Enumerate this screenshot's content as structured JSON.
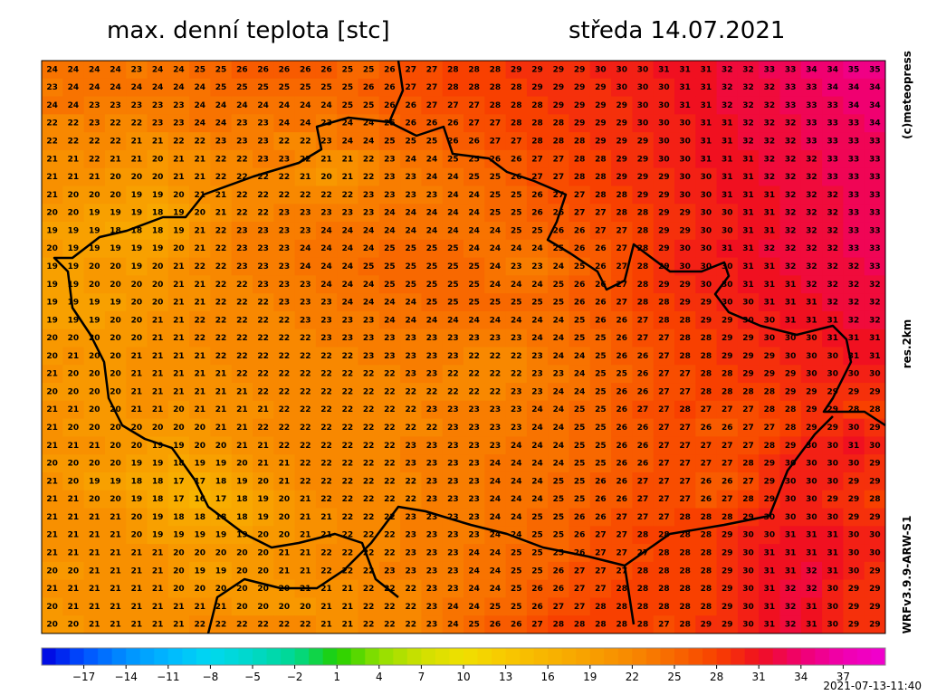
{
  "header": {
    "title": "max. denní teplota [stc]",
    "date": "středa 14.07.2021"
  },
  "side": {
    "copyright": "(c)meteopress",
    "resolution": "res.2km",
    "model": "WRFv3.9.9-ARW-S1"
  },
  "footer": {
    "timestamp": "2021-07-13-11:40"
  },
  "colorbar": {
    "range": [
      -20,
      40
    ],
    "stops": [
      [
        -20,
        "#0000e0"
      ],
      [
        -17,
        "#0050ff"
      ],
      [
        -14,
        "#0090ff"
      ],
      [
        -11,
        "#00b8ff"
      ],
      [
        -8,
        "#00d8f0"
      ],
      [
        -5,
        "#00d8c8"
      ],
      [
        -2,
        "#00d890"
      ],
      [
        1,
        "#20d000"
      ],
      [
        4,
        "#90e000"
      ],
      [
        7,
        "#d0e000"
      ],
      [
        10,
        "#f0e000"
      ],
      [
        13,
        "#f8c800"
      ],
      [
        16,
        "#f8b400"
      ],
      [
        19,
        "#f8a000"
      ],
      [
        22,
        "#f88800"
      ],
      [
        25,
        "#f86800"
      ],
      [
        28,
        "#f84000"
      ],
      [
        31,
        "#f01020"
      ],
      [
        34,
        "#f00070"
      ],
      [
        37,
        "#f000b0"
      ],
      [
        40,
        "#f000d0"
      ]
    ],
    "ticks": [
      {
        "value": -17,
        "label": "−17"
      },
      {
        "value": -14,
        "label": "−14"
      },
      {
        "value": -11,
        "label": "−11"
      },
      {
        "value": -8,
        "label": "−8"
      },
      {
        "value": -5,
        "label": "−5"
      },
      {
        "value": -2,
        "label": "−2"
      },
      1,
      4,
      7,
      10,
      13,
      16,
      19,
      22,
      25,
      28,
      31,
      34,
      37
    ]
  },
  "grid": {
    "rows": [
      [
        24,
        24,
        24,
        24,
        23,
        24,
        24,
        25,
        25,
        26,
        26,
        26,
        26,
        26,
        25,
        25,
        26,
        27,
        27,
        28,
        28,
        28,
        29,
        29,
        29,
        29,
        30,
        30,
        30,
        31,
        31,
        31,
        32,
        32,
        33,
        33,
        34,
        34,
        35,
        35
      ],
      [
        23,
        24,
        24,
        24,
        24,
        24,
        24,
        24,
        25,
        25,
        25,
        25,
        25,
        25,
        25,
        26,
        26,
        27,
        27,
        28,
        28,
        28,
        28,
        29,
        29,
        29,
        29,
        30,
        30,
        30,
        31,
        31,
        32,
        32,
        32,
        33,
        33,
        34,
        34,
        34
      ],
      [
        24,
        24,
        23,
        23,
        23,
        23,
        23,
        24,
        24,
        24,
        24,
        24,
        24,
        24,
        25,
        25,
        26,
        26,
        27,
        27,
        27,
        28,
        28,
        28,
        29,
        29,
        29,
        29,
        30,
        30,
        31,
        31,
        32,
        32,
        32,
        33,
        33,
        33,
        34,
        34
      ],
      [
        22,
        22,
        23,
        22,
        22,
        23,
        23,
        24,
        24,
        23,
        23,
        24,
        24,
        23,
        24,
        24,
        25,
        26,
        26,
        26,
        27,
        27,
        28,
        28,
        28,
        29,
        29,
        29,
        30,
        30,
        30,
        31,
        31,
        32,
        32,
        32,
        33,
        33,
        33,
        34
      ],
      [
        22,
        22,
        22,
        22,
        21,
        21,
        22,
        22,
        23,
        23,
        23,
        22,
        22,
        23,
        24,
        24,
        25,
        25,
        25,
        26,
        26,
        27,
        27,
        28,
        28,
        28,
        29,
        29,
        29,
        30,
        30,
        31,
        31,
        32,
        32,
        32,
        33,
        33,
        33,
        33
      ],
      [
        21,
        21,
        22,
        21,
        21,
        20,
        21,
        21,
        22,
        22,
        23,
        23,
        22,
        21,
        21,
        22,
        23,
        24,
        24,
        25,
        25,
        26,
        26,
        27,
        27,
        28,
        28,
        29,
        29,
        30,
        30,
        31,
        31,
        31,
        32,
        32,
        32,
        33,
        33,
        33
      ],
      [
        21,
        21,
        21,
        20,
        20,
        20,
        21,
        21,
        22,
        22,
        22,
        22,
        21,
        20,
        21,
        22,
        23,
        23,
        24,
        24,
        25,
        25,
        26,
        27,
        27,
        28,
        28,
        29,
        29,
        29,
        30,
        30,
        31,
        31,
        32,
        32,
        32,
        33,
        33,
        33
      ],
      [
        21,
        20,
        20,
        20,
        19,
        19,
        20,
        21,
        21,
        22,
        22,
        22,
        22,
        22,
        22,
        23,
        23,
        23,
        23,
        24,
        24,
        25,
        25,
        26,
        27,
        27,
        28,
        28,
        29,
        29,
        30,
        30,
        31,
        31,
        31,
        32,
        32,
        32,
        33,
        33
      ],
      [
        20,
        20,
        19,
        19,
        19,
        18,
        19,
        20,
        21,
        22,
        22,
        23,
        23,
        23,
        23,
        23,
        24,
        24,
        24,
        24,
        24,
        25,
        25,
        26,
        26,
        27,
        27,
        28,
        28,
        29,
        29,
        30,
        30,
        31,
        31,
        32,
        32,
        32,
        33,
        33
      ],
      [
        19,
        19,
        19,
        18,
        18,
        18,
        19,
        21,
        22,
        23,
        23,
        23,
        23,
        24,
        24,
        24,
        24,
        24,
        24,
        24,
        24,
        24,
        25,
        25,
        26,
        26,
        27,
        27,
        28,
        29,
        29,
        30,
        30,
        31,
        31,
        32,
        32,
        32,
        33,
        33
      ],
      [
        20,
        19,
        19,
        19,
        19,
        19,
        20,
        21,
        22,
        23,
        23,
        23,
        24,
        24,
        24,
        24,
        25,
        25,
        25,
        25,
        24,
        24,
        24,
        24,
        25,
        26,
        26,
        27,
        28,
        29,
        30,
        30,
        31,
        31,
        32,
        32,
        32,
        32,
        33,
        33
      ],
      [
        19,
        19,
        20,
        20,
        19,
        20,
        21,
        22,
        22,
        23,
        23,
        23,
        24,
        24,
        24,
        25,
        25,
        25,
        25,
        25,
        25,
        24,
        23,
        23,
        24,
        25,
        26,
        27,
        28,
        29,
        30,
        30,
        30,
        31,
        31,
        32,
        32,
        32,
        32,
        33
      ],
      [
        19,
        19,
        20,
        20,
        20,
        20,
        21,
        21,
        22,
        22,
        23,
        23,
        23,
        24,
        24,
        24,
        25,
        25,
        25,
        25,
        25,
        24,
        24,
        24,
        25,
        26,
        26,
        27,
        28,
        29,
        29,
        30,
        30,
        31,
        31,
        31,
        32,
        32,
        32,
        32
      ],
      [
        19,
        19,
        19,
        19,
        20,
        20,
        21,
        21,
        22,
        22,
        22,
        23,
        23,
        23,
        24,
        24,
        24,
        24,
        25,
        25,
        25,
        25,
        25,
        25,
        25,
        26,
        26,
        27,
        28,
        28,
        29,
        29,
        30,
        30,
        31,
        31,
        31,
        32,
        32,
        32
      ],
      [
        19,
        19,
        19,
        20,
        20,
        21,
        21,
        22,
        22,
        22,
        22,
        22,
        23,
        23,
        23,
        23,
        24,
        24,
        24,
        24,
        24,
        24,
        24,
        24,
        24,
        25,
        26,
        26,
        27,
        28,
        28,
        29,
        29,
        30,
        30,
        31,
        31,
        31,
        32,
        32
      ],
      [
        20,
        20,
        20,
        20,
        20,
        21,
        21,
        22,
        22,
        22,
        22,
        22,
        22,
        23,
        23,
        23,
        23,
        23,
        23,
        23,
        23,
        23,
        23,
        24,
        24,
        25,
        25,
        26,
        27,
        27,
        28,
        28,
        29,
        29,
        30,
        30,
        30,
        31,
        31,
        31
      ],
      [
        20,
        21,
        20,
        20,
        21,
        21,
        21,
        21,
        22,
        22,
        22,
        22,
        22,
        22,
        22,
        23,
        23,
        23,
        23,
        23,
        22,
        22,
        22,
        23,
        24,
        24,
        25,
        26,
        26,
        27,
        28,
        28,
        29,
        29,
        29,
        30,
        30,
        30,
        31,
        31
      ],
      [
        21,
        20,
        20,
        20,
        21,
        21,
        21,
        21,
        21,
        22,
        22,
        22,
        22,
        22,
        22,
        22,
        22,
        23,
        23,
        22,
        22,
        22,
        22,
        23,
        23,
        24,
        25,
        25,
        26,
        27,
        27,
        28,
        28,
        29,
        29,
        29,
        30,
        30,
        30,
        30
      ],
      [
        20,
        20,
        20,
        20,
        21,
        21,
        21,
        21,
        21,
        21,
        22,
        22,
        22,
        22,
        22,
        22,
        22,
        22,
        22,
        22,
        22,
        22,
        23,
        23,
        24,
        24,
        25,
        26,
        26,
        27,
        27,
        28,
        28,
        28,
        28,
        29,
        29,
        29,
        29,
        29
      ],
      [
        21,
        21,
        20,
        20,
        21,
        21,
        20,
        21,
        21,
        21,
        21,
        22,
        22,
        22,
        22,
        22,
        22,
        22,
        23,
        23,
        23,
        23,
        23,
        24,
        24,
        25,
        25,
        26,
        27,
        27,
        28,
        27,
        27,
        27,
        28,
        28,
        29,
        29,
        28,
        28
      ],
      [
        21,
        20,
        20,
        20,
        20,
        20,
        20,
        20,
        21,
        21,
        22,
        22,
        22,
        22,
        22,
        22,
        22,
        22,
        22,
        23,
        23,
        23,
        23,
        24,
        24,
        25,
        25,
        26,
        26,
        27,
        27,
        26,
        26,
        27,
        27,
        28,
        29,
        29,
        30,
        29
      ],
      [
        21,
        21,
        21,
        20,
        20,
        19,
        19,
        20,
        20,
        21,
        21,
        22,
        22,
        22,
        22,
        22,
        22,
        23,
        23,
        23,
        23,
        23,
        24,
        24,
        24,
        25,
        25,
        26,
        26,
        27,
        27,
        27,
        27,
        27,
        28,
        29,
        30,
        30,
        31,
        30
      ],
      [
        20,
        20,
        20,
        20,
        19,
        19,
        18,
        19,
        19,
        20,
        21,
        21,
        22,
        22,
        22,
        22,
        22,
        23,
        23,
        23,
        23,
        24,
        24,
        24,
        24,
        25,
        25,
        26,
        26,
        27,
        27,
        27,
        27,
        28,
        29,
        30,
        30,
        30,
        30,
        29
      ],
      [
        21,
        20,
        19,
        19,
        18,
        18,
        17,
        17,
        18,
        19,
        20,
        21,
        22,
        22,
        22,
        22,
        22,
        22,
        23,
        23,
        23,
        24,
        24,
        24,
        25,
        25,
        26,
        26,
        27,
        27,
        27,
        26,
        26,
        27,
        29,
        30,
        30,
        30,
        29,
        29
      ],
      [
        21,
        21,
        20,
        20,
        19,
        18,
        17,
        16,
        17,
        18,
        19,
        20,
        21,
        22,
        22,
        22,
        22,
        22,
        23,
        23,
        23,
        24,
        24,
        24,
        25,
        25,
        26,
        26,
        27,
        27,
        27,
        26,
        27,
        28,
        29,
        30,
        30,
        29,
        29,
        28
      ],
      [
        21,
        21,
        21,
        21,
        20,
        19,
        18,
        18,
        18,
        18,
        19,
        20,
        21,
        21,
        22,
        22,
        22,
        23,
        23,
        23,
        23,
        24,
        24,
        25,
        25,
        26,
        26,
        27,
        27,
        27,
        28,
        28,
        28,
        29,
        30,
        30,
        30,
        30,
        29,
        29
      ],
      [
        21,
        21,
        21,
        21,
        20,
        19,
        19,
        19,
        19,
        19,
        20,
        20,
        21,
        21,
        22,
        22,
        22,
        23,
        23,
        23,
        23,
        24,
        24,
        25,
        25,
        26,
        27,
        27,
        28,
        28,
        28,
        28,
        29,
        30,
        30,
        31,
        31,
        31,
        30,
        30
      ],
      [
        21,
        21,
        21,
        21,
        21,
        21,
        20,
        20,
        20,
        20,
        20,
        21,
        21,
        22,
        22,
        22,
        22,
        23,
        23,
        23,
        24,
        24,
        25,
        25,
        25,
        26,
        27,
        27,
        27,
        28,
        28,
        28,
        29,
        30,
        31,
        31,
        31,
        31,
        30,
        30
      ],
      [
        20,
        20,
        21,
        21,
        21,
        21,
        20,
        19,
        19,
        20,
        20,
        21,
        21,
        22,
        22,
        22,
        23,
        23,
        23,
        23,
        24,
        24,
        25,
        25,
        26,
        27,
        27,
        27,
        28,
        28,
        28,
        28,
        29,
        30,
        31,
        31,
        32,
        31,
        30,
        29
      ],
      [
        21,
        21,
        21,
        21,
        21,
        21,
        20,
        20,
        20,
        20,
        20,
        20,
        21,
        21,
        21,
        22,
        22,
        22,
        23,
        23,
        24,
        24,
        25,
        26,
        26,
        27,
        27,
        28,
        28,
        28,
        28,
        28,
        29,
        30,
        31,
        32,
        32,
        30,
        29,
        29
      ],
      [
        20,
        21,
        21,
        21,
        21,
        21,
        21,
        21,
        21,
        20,
        20,
        20,
        20,
        21,
        21,
        22,
        22,
        22,
        23,
        24,
        24,
        25,
        25,
        26,
        27,
        27,
        28,
        28,
        28,
        28,
        28,
        28,
        29,
        30,
        31,
        32,
        31,
        30,
        29,
        29
      ],
      [
        20,
        20,
        21,
        21,
        21,
        21,
        21,
        22,
        22,
        22,
        22,
        22,
        22,
        21,
        21,
        22,
        22,
        22,
        23,
        24,
        25,
        26,
        26,
        27,
        28,
        28,
        28,
        28,
        28,
        27,
        28,
        29,
        29,
        30,
        31,
        32,
        31,
        30,
        29,
        29
      ]
    ]
  }
}
